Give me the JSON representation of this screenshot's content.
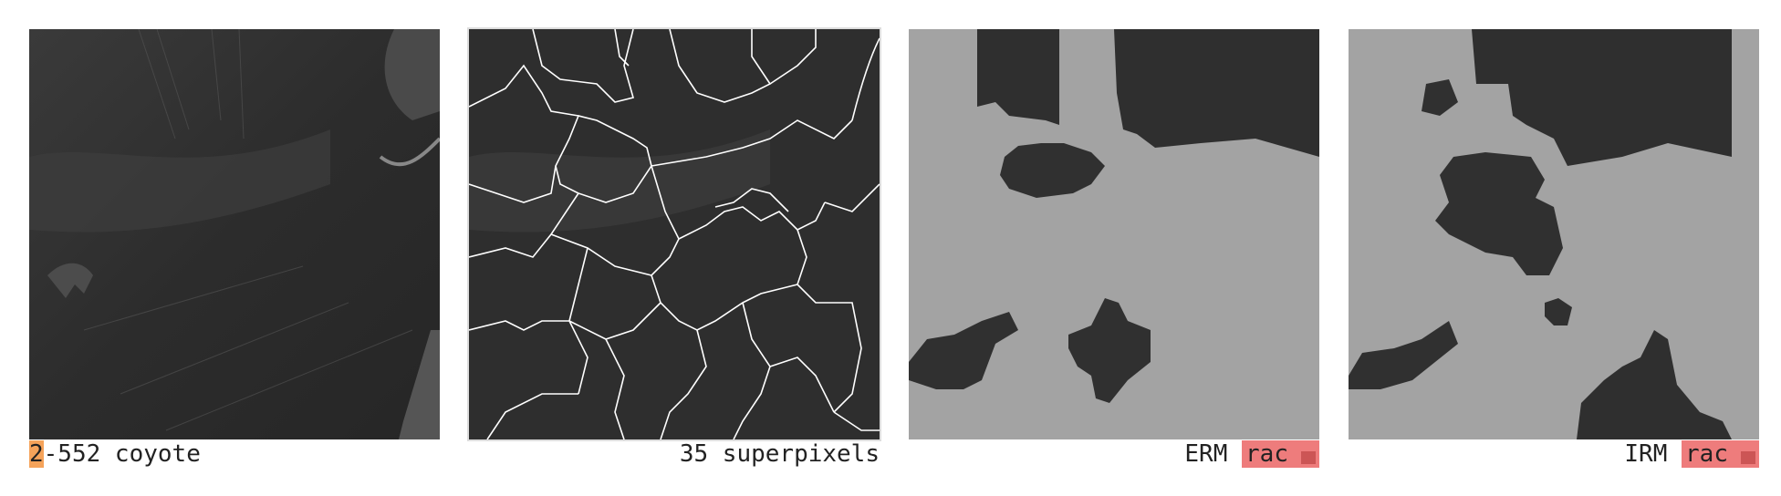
{
  "panels": [
    {
      "id": "original",
      "caption_prefix": "2",
      "caption_rest": "-552 coyote",
      "highlight_color": "#f5a35a"
    },
    {
      "id": "superpixels",
      "caption": "35 superpixels"
    },
    {
      "id": "erm",
      "caption_label": "ERM",
      "caption_tag": "rac",
      "tag_color": "#ee7c7c"
    },
    {
      "id": "irm",
      "caption_label": "IRM",
      "caption_tag": "rac",
      "tag_color": "#ee7c7c"
    }
  ],
  "colors": {
    "photo_dark": "#2b2b2b",
    "mask_gray": "#a3a3a3",
    "boundary": "#ffffff"
  }
}
